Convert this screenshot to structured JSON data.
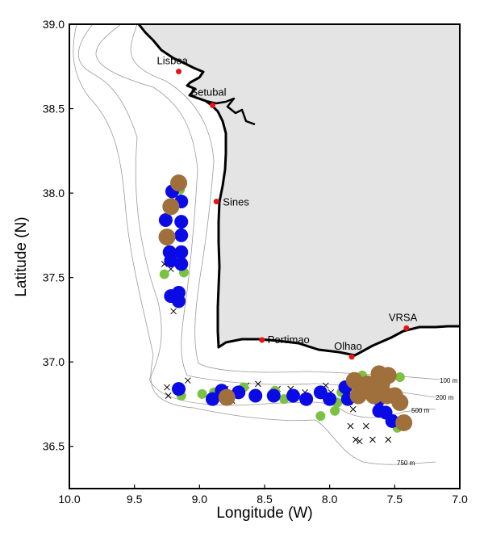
{
  "colors": {
    "land": "#e4e4e4",
    "coast": "#000000",
    "isobath": "#9a9a9a",
    "city": "#e81414",
    "blue": "#0a0ae6",
    "green": "#7cc242",
    "brown": "#a0703c"
  },
  "axes": {
    "xlabel": "Longitude (W)",
    "ylabel": "Latitude (N)",
    "xlim": [
      10.0,
      7.0
    ],
    "ylim": [
      36.25,
      39.0
    ],
    "xticks": [
      "10.0",
      "9.5",
      "9.0",
      "8.5",
      "8.0",
      "7.5",
      "7.0"
    ],
    "yticks": [
      "36.5",
      "37.0",
      "37.5",
      "38.0",
      "38.5",
      "39.0"
    ]
  },
  "cities": [
    {
      "name": "Lisboa",
      "lon": 9.16,
      "lat": 38.72
    },
    {
      "name": "Setubal",
      "lon": 8.9,
      "lat": 38.52
    },
    {
      "name": "Sines",
      "lon": 8.87,
      "lat": 37.95
    },
    {
      "name": "Portimao",
      "lon": 8.52,
      "lat": 37.13
    },
    {
      "name": "Olhao",
      "lon": 7.83,
      "lat": 37.03
    },
    {
      "name": "VRSA",
      "lon": 7.41,
      "lat": 37.2
    }
  ],
  "depth_labels": [
    "100 m",
    "200 m",
    "500 m",
    "750 m"
  ],
  "stations": {
    "blue": [
      [
        9.21,
        38.01
      ],
      [
        9.14,
        37.95
      ],
      [
        9.26,
        37.84
      ],
      [
        9.14,
        37.83
      ],
      [
        9.14,
        37.75
      ],
      [
        9.23,
        37.65
      ],
      [
        9.14,
        37.65
      ],
      [
        9.22,
        37.6
      ],
      [
        9.14,
        37.58
      ],
      [
        9.22,
        37.39
      ],
      [
        9.16,
        37.41
      ],
      [
        9.16,
        37.36
      ],
      [
        9.16,
        36.84
      ],
      [
        8.9,
        36.78
      ],
      [
        8.83,
        36.83
      ],
      [
        8.7,
        36.82
      ],
      [
        8.57,
        36.8
      ],
      [
        8.43,
        36.8
      ],
      [
        8.28,
        36.8
      ],
      [
        8.18,
        36.78
      ],
      [
        8.07,
        36.82
      ],
      [
        8.0,
        36.78
      ],
      [
        7.88,
        36.85
      ],
      [
        7.86,
        36.78
      ],
      [
        7.69,
        36.85
      ],
      [
        7.62,
        36.78
      ],
      [
        7.62,
        36.71
      ],
      [
        7.57,
        36.7
      ],
      [
        7.52,
        36.65
      ]
    ],
    "green": [
      [
        9.15,
        38.02
      ],
      [
        9.27,
        37.52
      ],
      [
        9.12,
        37.53
      ],
      [
        9.14,
        36.8
      ],
      [
        8.98,
        36.81
      ],
      [
        8.89,
        36.82
      ],
      [
        8.66,
        36.85
      ],
      [
        8.42,
        36.83
      ],
      [
        8.35,
        36.78
      ],
      [
        8.07,
        36.68
      ],
      [
        7.96,
        36.71
      ],
      [
        7.94,
        36.76
      ],
      [
        7.91,
        36.82
      ],
      [
        7.85,
        36.85
      ],
      [
        7.75,
        36.92
      ],
      [
        7.46,
        36.91
      ],
      [
        7.48,
        36.61
      ]
    ],
    "brown": [
      [
        9.16,
        38.06
      ],
      [
        9.22,
        37.92
      ],
      [
        9.25,
        37.74
      ],
      [
        8.79,
        36.79
      ],
      [
        7.81,
        36.89
      ],
      [
        7.78,
        36.8
      ],
      [
        7.71,
        36.87
      ],
      [
        7.66,
        36.8
      ],
      [
        7.62,
        36.93
      ],
      [
        7.6,
        36.87
      ],
      [
        7.56,
        36.8
      ],
      [
        7.55,
        36.92
      ],
      [
        7.5,
        36.8
      ],
      [
        7.46,
        36.76
      ],
      [
        7.43,
        36.64
      ]
    ],
    "cross": [
      [
        9.27,
        37.58
      ],
      [
        9.22,
        37.55
      ],
      [
        9.2,
        37.3
      ],
      [
        9.25,
        36.85
      ],
      [
        9.24,
        36.8
      ],
      [
        9.09,
        36.89
      ],
      [
        8.8,
        36.84
      ],
      [
        8.75,
        36.77
      ],
      [
        8.64,
        36.86
      ],
      [
        8.55,
        36.87
      ],
      [
        8.4,
        36.84
      ],
      [
        8.3,
        36.84
      ],
      [
        8.19,
        36.82
      ],
      [
        8.03,
        36.86
      ],
      [
        7.99,
        36.82
      ],
      [
        7.8,
        36.84
      ],
      [
        7.82,
        36.72
      ],
      [
        7.84,
        36.62
      ],
      [
        7.72,
        36.62
      ],
      [
        7.8,
        36.54
      ],
      [
        7.77,
        36.53
      ],
      [
        7.67,
        36.54
      ],
      [
        7.55,
        36.54
      ]
    ]
  }
}
